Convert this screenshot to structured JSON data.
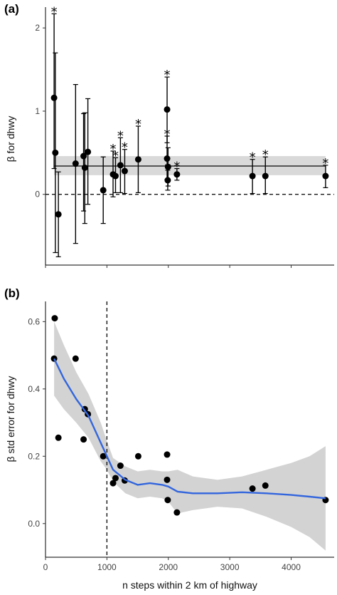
{
  "chart_data": [
    {
      "type": "scatter",
      "panel_label": "(a)",
      "ylabel": "β for dhwy",
      "xlim": [
        0,
        4700
      ],
      "ylim": [
        -0.85,
        2.25
      ],
      "x_ticks": [
        0,
        1000,
        2000,
        3000,
        4000
      ],
      "y_ticks": [
        0,
        1,
        2
      ],
      "y_tick_labels": [
        "0",
        "1",
        "2"
      ],
      "grid": false,
      "reference_line": {
        "y": 0,
        "style": "dashed"
      },
      "mean_line": {
        "y": 0.34,
        "band": [
          0.23,
          0.46
        ],
        "color": "#555555",
        "band_color": "#d9d9d9"
      },
      "significance_marker": "*",
      "points": [
        {
          "x": 140,
          "y": 1.16,
          "lo": 0.31,
          "hi": 2.17,
          "sig": true
        },
        {
          "x": 160,
          "y": 0.5,
          "lo": -0.7,
          "hi": 1.7,
          "sig": false
        },
        {
          "x": 210,
          "y": -0.24,
          "lo": -0.75,
          "hi": 0.27,
          "sig": false
        },
        {
          "x": 490,
          "y": 0.37,
          "lo": -0.59,
          "hi": 1.32,
          "sig": false
        },
        {
          "x": 620,
          "y": 0.46,
          "lo": -0.2,
          "hi": 0.97,
          "sig": false
        },
        {
          "x": 640,
          "y": 0.32,
          "lo": -0.35,
          "hi": 0.98,
          "sig": false
        },
        {
          "x": 690,
          "y": 0.51,
          "lo": -0.12,
          "hi": 1.15,
          "sig": false
        },
        {
          "x": 940,
          "y": 0.05,
          "lo": -0.35,
          "hi": 0.45,
          "sig": false
        },
        {
          "x": 1100,
          "y": 0.24,
          "lo": -0.03,
          "hi": 0.52,
          "sig": true
        },
        {
          "x": 1140,
          "y": 0.22,
          "lo": 0.02,
          "hi": 0.44,
          "sig": true
        },
        {
          "x": 1220,
          "y": 0.35,
          "lo": 0.02,
          "hi": 0.68,
          "sig": true
        },
        {
          "x": 1290,
          "y": 0.28,
          "lo": 0.01,
          "hi": 0.54,
          "sig": true
        },
        {
          "x": 1510,
          "y": 0.42,
          "lo": 0.02,
          "hi": 0.82,
          "sig": true
        },
        {
          "x": 1980,
          "y": 1.02,
          "lo": 0.62,
          "hi": 1.41,
          "sig": true
        },
        {
          "x": 1980,
          "y": 0.43,
          "lo": 0.18,
          "hi": 0.7,
          "sig": true
        },
        {
          "x": 1990,
          "y": 0.17,
          "lo": 0.05,
          "hi": 0.29,
          "sig": true
        },
        {
          "x": 1995,
          "y": 0.33,
          "lo": 0.1,
          "hi": 0.56,
          "sig": false
        },
        {
          "x": 2140,
          "y": 0.24,
          "lo": 0.17,
          "hi": 0.31,
          "sig": true
        },
        {
          "x": 3370,
          "y": 0.22,
          "lo": 0.01,
          "hi": 0.42,
          "sig": true
        },
        {
          "x": 3580,
          "y": 0.22,
          "lo": 0.01,
          "hi": 0.45,
          "sig": true
        },
        {
          "x": 4560,
          "y": 0.22,
          "lo": 0.08,
          "hi": 0.35,
          "sig": true
        }
      ]
    },
    {
      "type": "scatter",
      "panel_label": "(b)",
      "xlabel": "n steps within 2 km of highway",
      "ylabel": "β std error for dhwy",
      "xlim": [
        0,
        4700
      ],
      "ylim": [
        -0.1,
        0.66
      ],
      "x_ticks": [
        0,
        1000,
        2000,
        3000,
        4000
      ],
      "x_tick_labels": [
        "0",
        "1000",
        "2000",
        "3000",
        "4000"
      ],
      "y_ticks": [
        0,
        0.2,
        0.4,
        0.6
      ],
      "y_tick_labels": [
        "0.0",
        "0.2",
        "0.4",
        "0.6"
      ],
      "grid": false,
      "reference_line": {
        "x": 1000,
        "style": "dashed"
      },
      "points": [
        {
          "x": 140,
          "y": 0.49
        },
        {
          "x": 150,
          "y": 0.61
        },
        {
          "x": 210,
          "y": 0.255
        },
        {
          "x": 490,
          "y": 0.49
        },
        {
          "x": 620,
          "y": 0.25
        },
        {
          "x": 640,
          "y": 0.34
        },
        {
          "x": 690,
          "y": 0.325
        },
        {
          "x": 940,
          "y": 0.2
        },
        {
          "x": 1100,
          "y": 0.12
        },
        {
          "x": 1140,
          "y": 0.135
        },
        {
          "x": 1220,
          "y": 0.172
        },
        {
          "x": 1290,
          "y": 0.128
        },
        {
          "x": 1510,
          "y": 0.2
        },
        {
          "x": 1980,
          "y": 0.205
        },
        {
          "x": 1980,
          "y": 0.13
        },
        {
          "x": 1990,
          "y": 0.07
        },
        {
          "x": 2140,
          "y": 0.033
        },
        {
          "x": 3370,
          "y": 0.104
        },
        {
          "x": 3580,
          "y": 0.113
        },
        {
          "x": 4560,
          "y": 0.07
        }
      ],
      "smooth": {
        "color": "#3366dd",
        "band_color": "#d3d3d3",
        "x": [
          140,
          300,
          500,
          700,
          900,
          1000,
          1100,
          1300,
          1500,
          1700,
          1900,
          2000,
          2150,
          2400,
          2800,
          3200,
          3600,
          4000,
          4300,
          4560
        ],
        "y": [
          0.49,
          0.43,
          0.37,
          0.32,
          0.24,
          0.2,
          0.16,
          0.13,
          0.115,
          0.12,
          0.115,
          0.11,
          0.095,
          0.09,
          0.09,
          0.093,
          0.09,
          0.085,
          0.08,
          0.075
        ],
        "lo": [
          0.38,
          0.34,
          0.3,
          0.255,
          0.185,
          0.16,
          0.125,
          0.09,
          0.075,
          0.08,
          0.075,
          0.065,
          0.03,
          0.04,
          0.05,
          0.045,
          0.02,
          -0.01,
          -0.04,
          -0.08
        ],
        "hi": [
          0.6,
          0.53,
          0.45,
          0.385,
          0.3,
          0.245,
          0.195,
          0.17,
          0.155,
          0.16,
          0.155,
          0.155,
          0.16,
          0.14,
          0.13,
          0.14,
          0.16,
          0.18,
          0.2,
          0.23
        ]
      }
    }
  ]
}
